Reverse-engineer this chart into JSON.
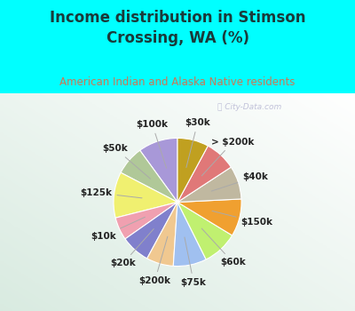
{
  "title": "Income distribution in Stimson\nCrossing, WA (%)",
  "subtitle": "American Indian and Alaska Native residents",
  "watermark": "ⓘ City-Data.com",
  "background_cyan": "#00ffff",
  "title_color": "#1a3a3a",
  "subtitle_color": "#cc7755",
  "labels": [
    "$100k",
    "$50k",
    "$125k",
    "$10k",
    "$20k",
    "$200k",
    "$75k",
    "$60k",
    "$150k",
    "$40k",
    "> $200k",
    "$30k"
  ],
  "values": [
    9.5,
    7.0,
    11.0,
    5.5,
    7.0,
    6.5,
    8.0,
    8.5,
    9.0,
    8.0,
    7.5,
    7.5
  ],
  "colors": [
    "#a898d8",
    "#b0c898",
    "#f0f070",
    "#f0a0b0",
    "#8080cc",
    "#f0c890",
    "#a0c0f0",
    "#c0f070",
    "#f0a030",
    "#c0b8a0",
    "#e07878",
    "#c0a020"
  ],
  "startangle": 90,
  "label_fontsize": 7.5,
  "label_fontweight": "bold",
  "label_color": "#222222"
}
